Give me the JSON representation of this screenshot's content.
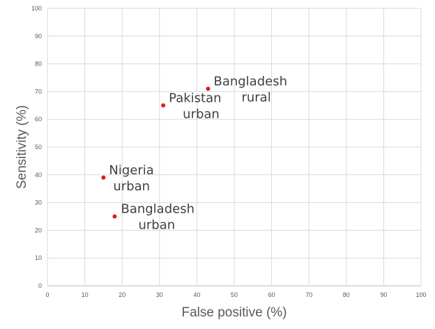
{
  "chart_data": {
    "type": "scatter",
    "title": "",
    "xlabel": "False positive (%)",
    "ylabel": "Sensitivity (%)",
    "xlim": [
      0,
      100
    ],
    "ylim": [
      0,
      100
    ],
    "x_ticks": [
      "0",
      "10",
      "20",
      "30",
      "40",
      "50",
      "60",
      "70",
      "80",
      "90",
      "100"
    ],
    "y_ticks": [
      "0",
      "10",
      "20",
      "30",
      "40",
      "50",
      "60",
      "70",
      "80",
      "90",
      "100"
    ],
    "grid": true,
    "legend": "none",
    "marker_color": "#e0191c",
    "points": [
      {
        "label": [
          "Bangladesh",
          "rural"
        ],
        "x": 43,
        "y": 71
      },
      {
        "label": [
          "Pakistan",
          "urban"
        ],
        "x": 31,
        "y": 65
      },
      {
        "label": [
          "Nigeria",
          "urban"
        ],
        "x": 15,
        "y": 39
      },
      {
        "label": [
          "Bangladesh",
          "urban"
        ],
        "x": 18,
        "y": 25
      }
    ]
  }
}
